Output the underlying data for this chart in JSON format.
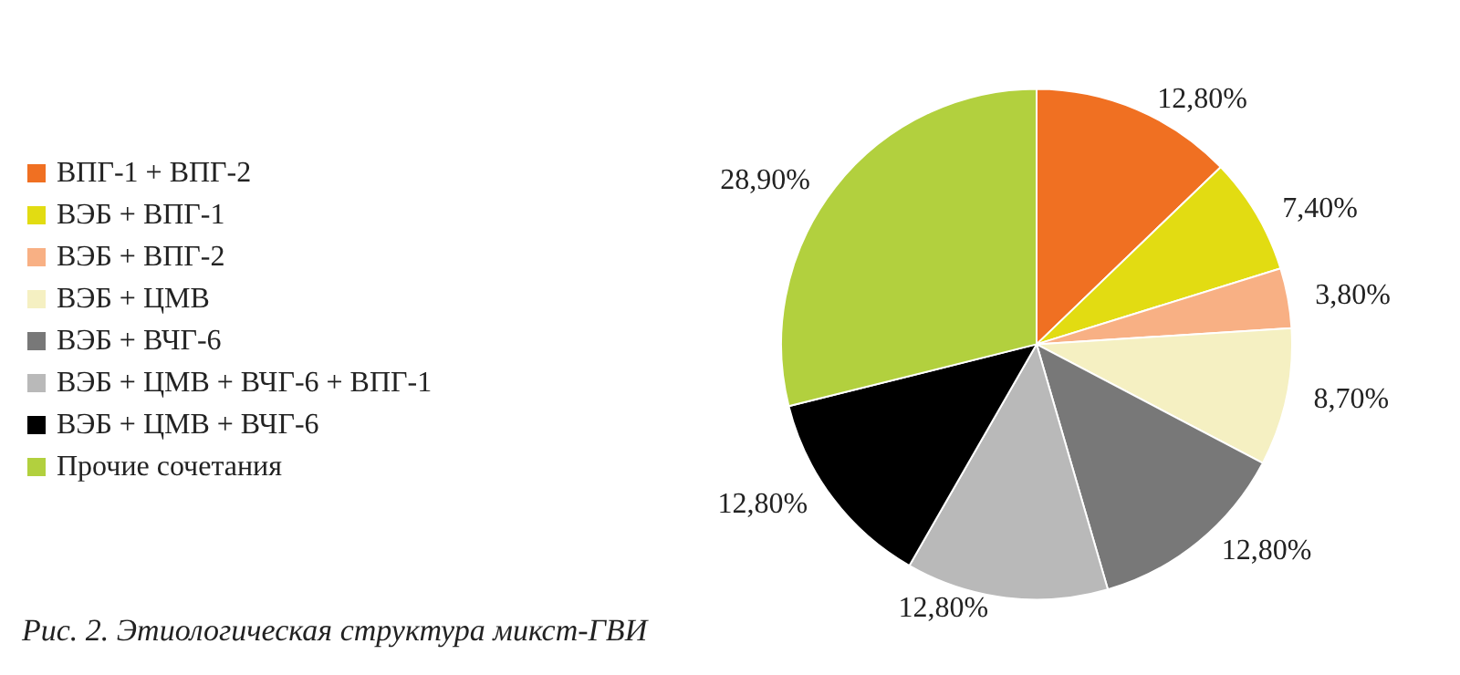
{
  "chart_data": {
    "type": "pie",
    "categories": [
      "ВПГ-1 + ВПГ-2",
      "ВЭБ + ВПГ-1",
      "ВЭБ + ВПГ-2",
      "ВЭБ + ЦМВ",
      "ВЭБ + ВЧГ-6",
      "ВЭБ + ЦМВ + ВЧГ-6 + ВПГ-1",
      "ВЭБ + ЦМВ + ВЧГ-6",
      "Прочие сочетания"
    ],
    "values": [
      12.8,
      7.4,
      3.8,
      8.7,
      12.8,
      12.8,
      12.8,
      28.9
    ],
    "value_labels": [
      "12,80%",
      "7,40%",
      "3,80%",
      "8,70%",
      "12,80%",
      "12,80%",
      "12,80%",
      "28,90%"
    ],
    "colors": [
      "#f07022",
      "#e2dc12",
      "#f8b084",
      "#f5f0c2",
      "#787878",
      "#b9b9b9",
      "#000000",
      "#b2d03e"
    ],
    "legend": "left",
    "annotations": [
      "Рис. 2. Этиологическая структура микст-ГВИ"
    ]
  }
}
